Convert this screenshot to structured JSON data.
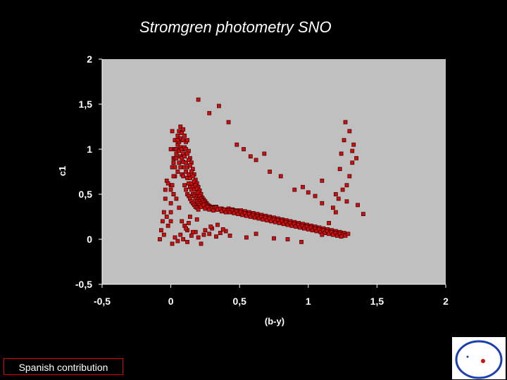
{
  "title": "Stromgren photometry SNO",
  "footer_label": "Spanish contribution",
  "colors": {
    "background": "#000000",
    "plot_area": "#c0c0c0",
    "marker_fill": "#d01010",
    "marker_edge": "#4a0000",
    "logo_blue": "#1a3fb0"
  },
  "icons": {
    "logo": "institute-logo-icon"
  },
  "chart_data": {
    "type": "scatter",
    "title": "",
    "xlabel": "(b-y)",
    "ylabel": "c1",
    "xlim": [
      -0.5,
      2
    ],
    "ylim": [
      -0.5,
      2
    ],
    "x_ticks": [
      "-0,5",
      "0",
      "0,5",
      "1",
      "1,5",
      "2"
    ],
    "y_ticks": [
      "2",
      "1,5",
      "1",
      "0,5",
      "0",
      "-0,5"
    ],
    "grid": false,
    "legend": "none",
    "series": [
      {
        "x": [
          0.0,
          0.0,
          0.02,
          0.01,
          0.03,
          0.0,
          0.02,
          0.04,
          0.01,
          0.03,
          0.05,
          0.02,
          0.0,
          0.04,
          0.06,
          0.03,
          0.01,
          0.05,
          0.02,
          0.07,
          0.04,
          0.0,
          0.06,
          0.03,
          0.08,
          0.05,
          0.02,
          0.07,
          0.04,
          0.09,
          0.06,
          0.03,
          0.08,
          0.05,
          0.1,
          0.07,
          0.04,
          0.09,
          0.06,
          0.11,
          0.08,
          0.05,
          0.1,
          0.07,
          0.12,
          0.09,
          0.06,
          0.11,
          0.08,
          0.13,
          0.1,
          0.07,
          0.12,
          0.09,
          0.14,
          0.11,
          0.08,
          0.13,
          0.1,
          0.15,
          0.12,
          0.09,
          0.14,
          0.11,
          0.16,
          0.13,
          0.1,
          0.15,
          0.12,
          0.17,
          0.14,
          0.11,
          0.16,
          0.13,
          0.18,
          0.15,
          0.12,
          0.17,
          0.14,
          0.19,
          0.16,
          0.13,
          0.18,
          0.15,
          0.2,
          0.17,
          0.14,
          0.19,
          0.16,
          0.21,
          0.18,
          0.15,
          0.2,
          0.17,
          0.22,
          0.19,
          0.16,
          0.21,
          0.18,
          0.23,
          0.2,
          0.17,
          0.22,
          0.19,
          0.24,
          0.21,
          0.18,
          0.23,
          0.2,
          0.25,
          0.22,
          0.19,
          0.24,
          0.21,
          0.26,
          0.23,
          0.2,
          0.25,
          0.22,
          0.27,
          0.24,
          0.26,
          0.28,
          0.3,
          0.25,
          0.27,
          0.29,
          0.31,
          0.33,
          0.28,
          0.3,
          0.32,
          0.34,
          0.36,
          0.31,
          0.33,
          0.35,
          0.37,
          0.39,
          0.34,
          0.36,
          0.38,
          0.4,
          0.42,
          0.37,
          0.39,
          0.41,
          0.43,
          0.45,
          0.4,
          0.42,
          0.44,
          0.46,
          0.48,
          0.43,
          0.45,
          0.47,
          0.49,
          0.51,
          0.46,
          0.48,
          0.5,
          0.52,
          0.54,
          0.49,
          0.51,
          0.53,
          0.55,
          0.57,
          0.52,
          0.54,
          0.56,
          0.58,
          0.6,
          0.55,
          0.57,
          0.59,
          0.61,
          0.63,
          0.58,
          0.6,
          0.62,
          0.64,
          0.66,
          0.61,
          0.63,
          0.65,
          0.67,
          0.69,
          0.64,
          0.66,
          0.68,
          0.7,
          0.72,
          0.67,
          0.69,
          0.71,
          0.73,
          0.75,
          0.7,
          0.72,
          0.74,
          0.76,
          0.78,
          0.73,
          0.75,
          0.77,
          0.79,
          0.81,
          0.76,
          0.78,
          0.8,
          0.82,
          0.84,
          0.79,
          0.81,
          0.83,
          0.85,
          0.87,
          0.82,
          0.84,
          0.86,
          0.88,
          0.9,
          0.85,
          0.87,
          0.89,
          0.91,
          0.93,
          0.88,
          0.9,
          0.92,
          0.94,
          0.96,
          0.91,
          0.93,
          0.95,
          0.97,
          0.99,
          0.94,
          0.96,
          0.98,
          1.0,
          1.02,
          0.97,
          0.99,
          1.01,
          1.03,
          1.05,
          1.0,
          1.02,
          1.04,
          1.06,
          1.08,
          1.03,
          1.05,
          1.07,
          1.09,
          1.11,
          1.06,
          1.08,
          1.1,
          1.12,
          1.14,
          1.09,
          1.11,
          1.13,
          1.15,
          1.17,
          1.12,
          1.14,
          1.16,
          1.18,
          1.2,
          1.15,
          1.17,
          1.19,
          1.21,
          1.23,
          1.18,
          1.2,
          1.22,
          1.24,
          1.26,
          1.21,
          1.23,
          1.25,
          1.27,
          1.29,
          1.24,
          -0.08,
          -0.07,
          -0.06,
          -0.05,
          -0.04,
          -0.03,
          -0.02,
          -0.05,
          -0.04,
          -0.03,
          0.01,
          0.03,
          0.05,
          0.07,
          0.09,
          0.12,
          0.15,
          0.18,
          0.2,
          0.22,
          0.25,
          0.28,
          0.3,
          0.33,
          0.36,
          0.4,
          0.08,
          0.1,
          0.12,
          0.14,
          0.06,
          0.04,
          0.02,
          0.0,
          -0.02,
          0.11,
          0.13,
          0.16,
          0.19,
          0.24,
          0.29,
          0.34,
          0.38,
          0.43,
          0.55,
          0.62,
          0.75,
          0.85,
          0.95,
          1.1,
          1.15,
          1.2,
          1.22,
          1.25,
          1.28,
          1.3,
          1.32,
          1.35,
          1.24,
          1.18,
          1.1,
          1.05,
          1.0,
          0.96,
          1.27,
          1.3,
          1.26,
          1.33,
          1.2,
          1.28,
          1.36,
          1.4,
          0.2,
          0.28,
          0.35,
          0.42,
          0.48,
          0.53,
          0.58,
          0.62,
          0.68,
          0.72,
          0.8,
          0.9,
          1.1,
          1.23,
          1.32
        ],
        "y": [
          0.4,
          0.6,
          0.5,
          0.8,
          0.7,
          1.0,
          0.9,
          1.1,
          1.2,
          1.0,
          1.15,
          0.85,
          0.3,
          0.95,
          1.2,
          1.1,
          0.6,
          1.05,
          0.7,
          1.25,
          1.0,
          0.2,
          1.1,
          0.9,
          1.18,
          1.05,
          0.85,
          1.12,
          0.95,
          1.22,
          1.08,
          0.8,
          1.0,
          1.1,
          1.15,
          1.02,
          0.9,
          1.1,
          0.98,
          1.08,
          1.0,
          0.75,
          1.02,
          0.92,
          1.1,
          0.95,
          0.85,
          1.0,
          0.9,
          0.98,
          0.92,
          0.8,
          0.95,
          0.86,
          0.9,
          0.85,
          0.72,
          0.88,
          0.8,
          0.85,
          0.8,
          0.7,
          0.82,
          0.75,
          0.78,
          0.72,
          0.6,
          0.75,
          0.68,
          0.72,
          0.68,
          0.55,
          0.7,
          0.62,
          0.66,
          0.62,
          0.5,
          0.64,
          0.58,
          0.62,
          0.58,
          0.48,
          0.6,
          0.55,
          0.58,
          0.55,
          0.45,
          0.56,
          0.5,
          0.54,
          0.5,
          0.42,
          0.52,
          0.48,
          0.5,
          0.47,
          0.4,
          0.48,
          0.45,
          0.46,
          0.44,
          0.38,
          0.45,
          0.42,
          0.44,
          0.42,
          0.36,
          0.43,
          0.4,
          0.42,
          0.4,
          0.35,
          0.41,
          0.38,
          0.4,
          0.38,
          0.33,
          0.39,
          0.36,
          0.38,
          0.38,
          0.36,
          0.37,
          0.36,
          0.34,
          0.36,
          0.35,
          0.34,
          0.36,
          0.33,
          0.34,
          0.35,
          0.33,
          0.34,
          0.32,
          0.35,
          0.33,
          0.34,
          0.32,
          0.33,
          0.34,
          0.33,
          0.32,
          0.34,
          0.31,
          0.33,
          0.32,
          0.31,
          0.33,
          0.3,
          0.32,
          0.33,
          0.31,
          0.32,
          0.3,
          0.32,
          0.31,
          0.3,
          0.32,
          0.29,
          0.31,
          0.3,
          0.29,
          0.31,
          0.28,
          0.3,
          0.29,
          0.28,
          0.3,
          0.27,
          0.29,
          0.28,
          0.27,
          0.29,
          0.26,
          0.28,
          0.27,
          0.26,
          0.28,
          0.25,
          0.27,
          0.26,
          0.25,
          0.27,
          0.24,
          0.26,
          0.25,
          0.24,
          0.26,
          0.23,
          0.25,
          0.24,
          0.23,
          0.25,
          0.22,
          0.24,
          0.23,
          0.22,
          0.24,
          0.21,
          0.23,
          0.22,
          0.21,
          0.23,
          0.2,
          0.22,
          0.21,
          0.2,
          0.22,
          0.19,
          0.21,
          0.2,
          0.19,
          0.21,
          0.18,
          0.2,
          0.19,
          0.18,
          0.2,
          0.17,
          0.19,
          0.18,
          0.17,
          0.19,
          0.16,
          0.18,
          0.17,
          0.16,
          0.18,
          0.15,
          0.17,
          0.16,
          0.15,
          0.17,
          0.14,
          0.16,
          0.15,
          0.14,
          0.16,
          0.13,
          0.15,
          0.14,
          0.13,
          0.15,
          0.12,
          0.14,
          0.13,
          0.12,
          0.14,
          0.11,
          0.13,
          0.12,
          0.11,
          0.13,
          0.1,
          0.12,
          0.11,
          0.1,
          0.12,
          0.09,
          0.11,
          0.1,
          0.09,
          0.11,
          0.08,
          0.1,
          0.09,
          0.08,
          0.1,
          0.07,
          0.09,
          0.08,
          0.07,
          0.09,
          0.06,
          0.08,
          0.07,
          0.06,
          0.08,
          0.05,
          0.07,
          0.06,
          0.05,
          0.07,
          0.04,
          0.06,
          0.05,
          0.04,
          0.06,
          0.03,
          0.0,
          0.1,
          0.2,
          0.3,
          0.45,
          0.25,
          0.15,
          0.05,
          0.55,
          0.65,
          -0.05,
          0.02,
          -0.02,
          0.05,
          0.0,
          -0.03,
          0.04,
          0.08,
          0.02,
          -0.05,
          0.1,
          0.06,
          0.12,
          0.03,
          0.07,
          0.09,
          0.2,
          0.15,
          0.1,
          0.25,
          0.35,
          0.45,
          0.5,
          0.55,
          0.62,
          0.12,
          0.18,
          0.08,
          0.22,
          0.05,
          0.14,
          0.16,
          0.11,
          0.04,
          0.02,
          0.06,
          0.01,
          0.0,
          -0.03,
          0.05,
          0.18,
          0.3,
          0.45,
          0.55,
          0.6,
          0.7,
          0.85,
          0.9,
          0.95,
          0.35,
          0.4,
          0.48,
          0.52,
          0.58,
          1.3,
          1.2,
          1.1,
          1.05,
          0.5,
          0.42,
          0.38,
          0.28,
          1.55,
          1.4,
          1.48,
          1.3,
          1.05,
          1.0,
          0.92,
          0.88,
          0.95,
          0.75,
          0.7,
          0.55,
          0.65,
          0.78,
          0.98
        ]
      }
    ]
  }
}
